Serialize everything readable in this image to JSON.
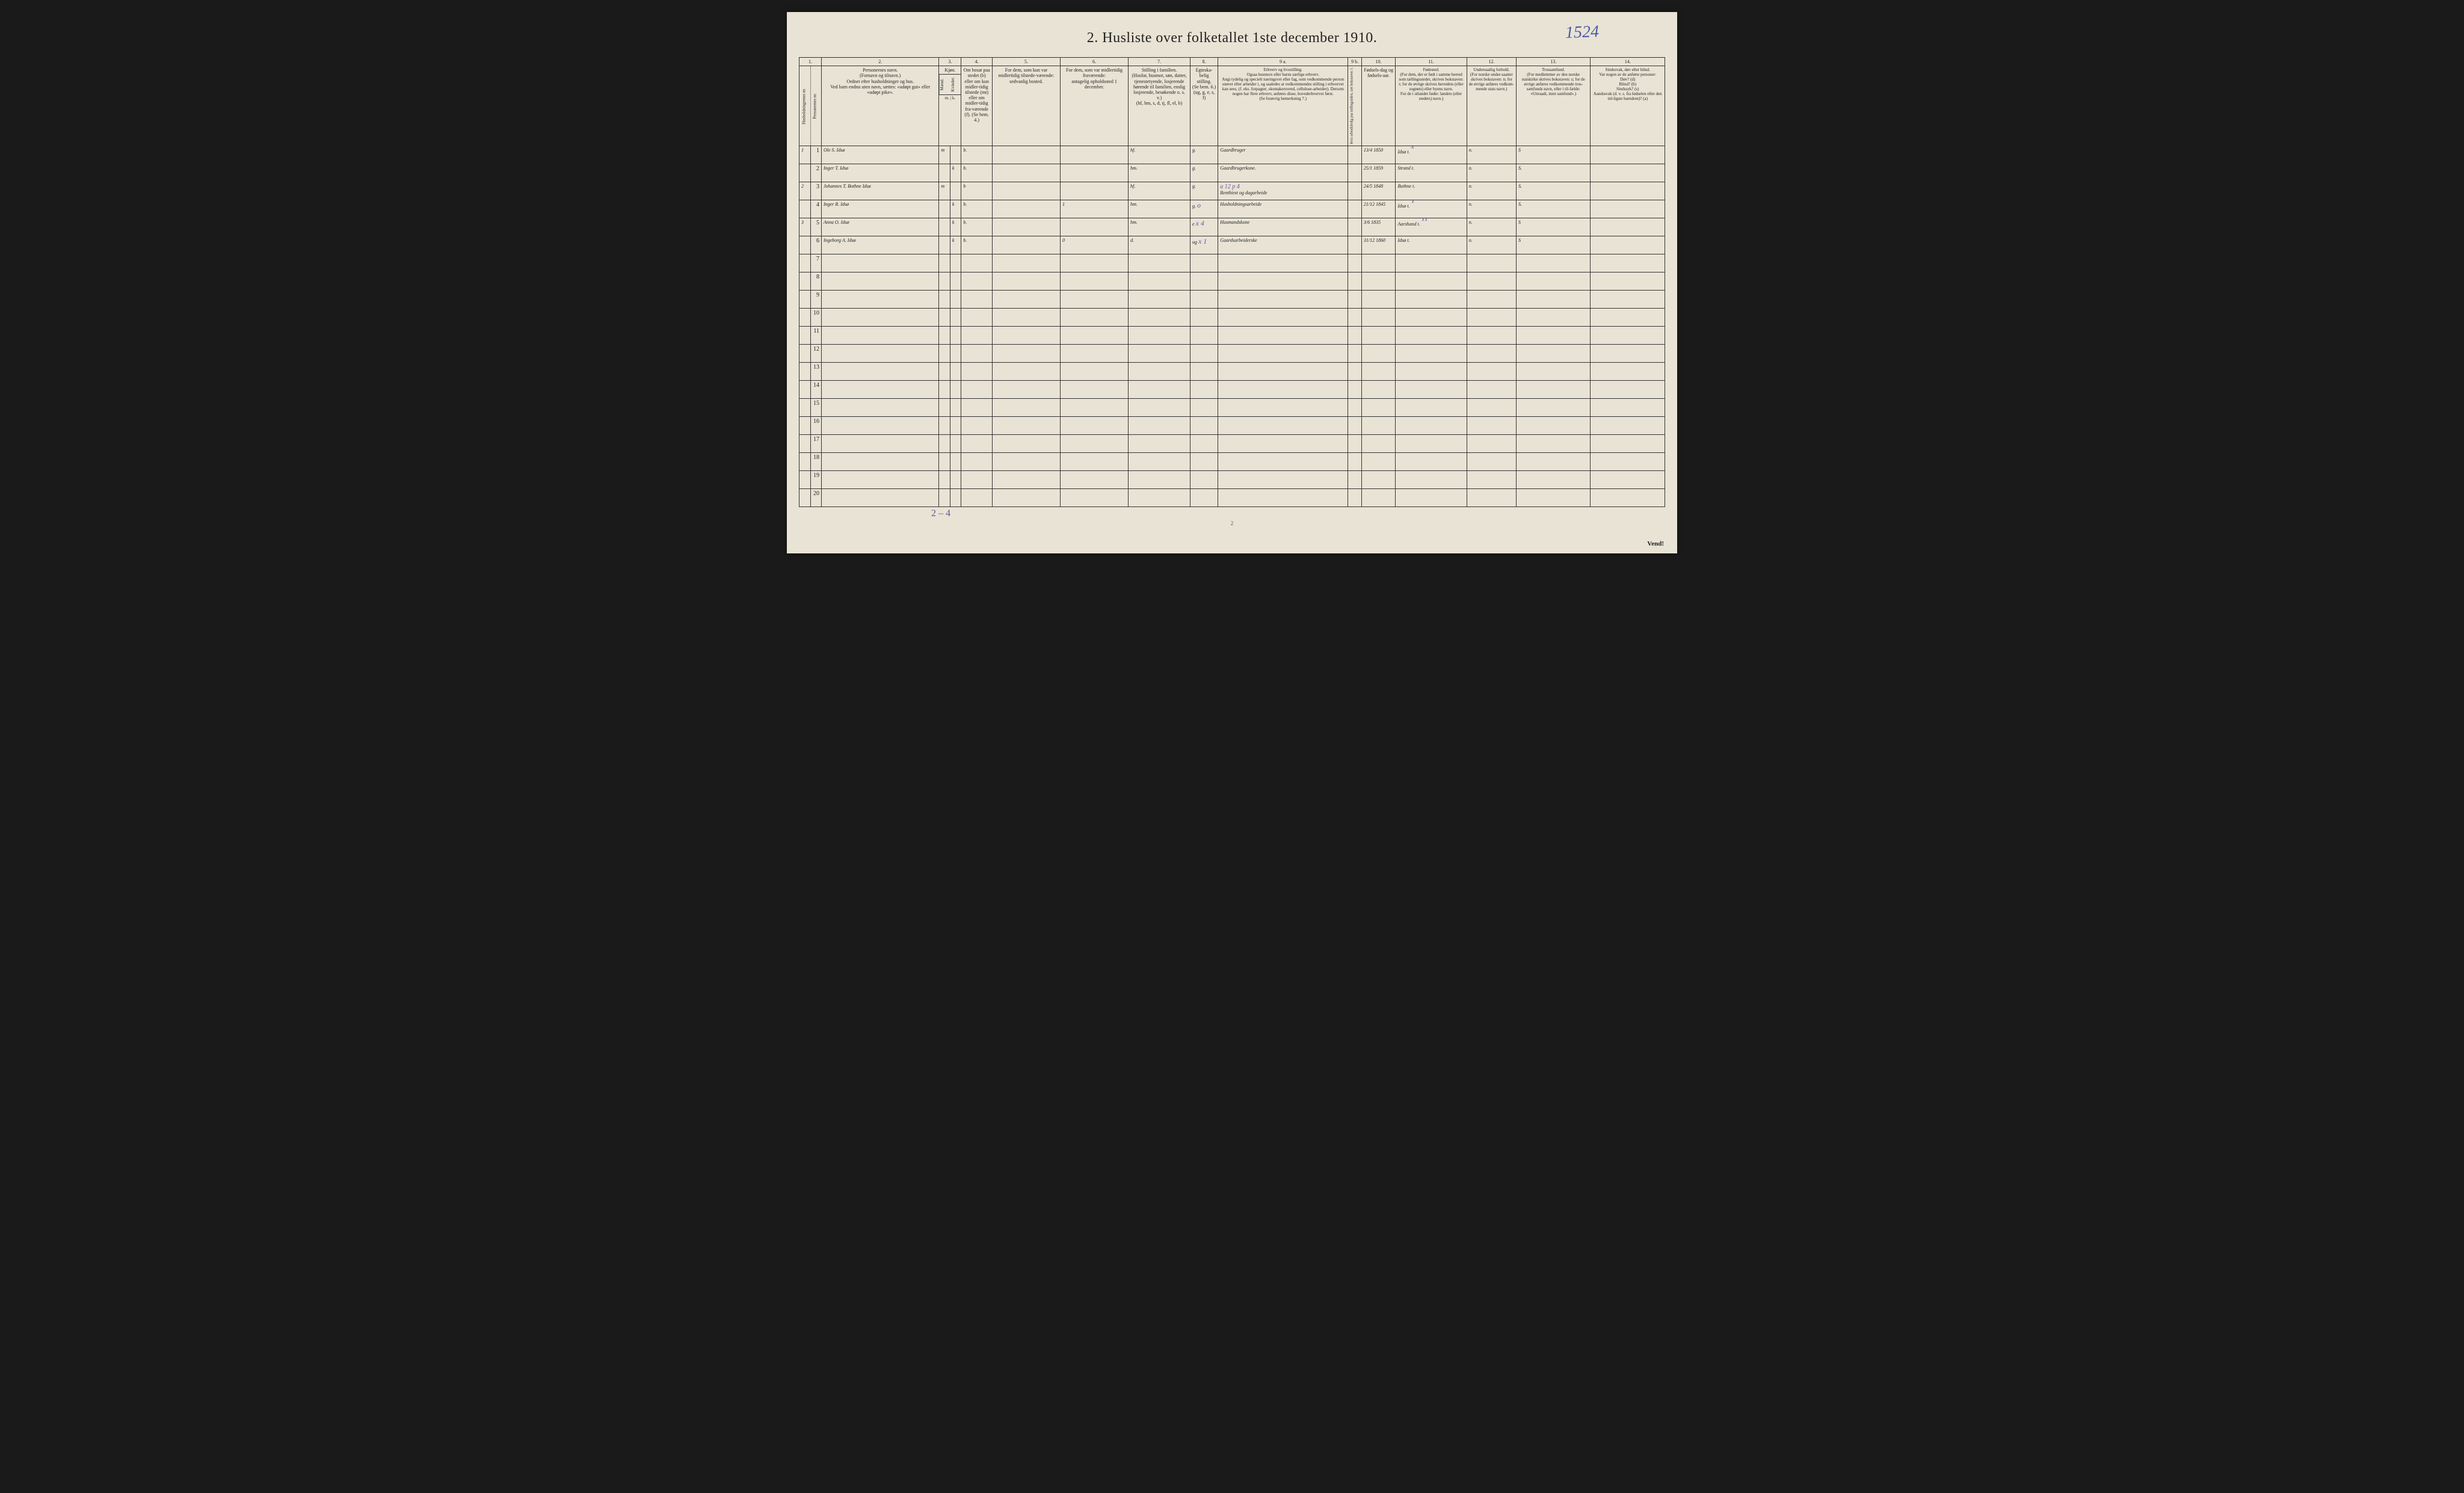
{
  "handwritten_topright": "1524",
  "title": "2.  Husliste over folketallet 1ste december 1910.",
  "column_numbers": [
    "1.",
    "2.",
    "3.",
    "4.",
    "5.",
    "6.",
    "7.",
    "8.",
    "9 a.",
    "9 b.",
    "10.",
    "11.",
    "12.",
    "13.",
    "14."
  ],
  "headers": {
    "c1a": "Husholdningernes nr.",
    "c1b": "Personernes nr.",
    "c2": "Personernes navn.\n(Fornavn og tilnavn.)\nOrdnet efter husholdninger og hus.\nVed barn endnu uten navn, sættes: «udøpt gut» eller «udøpt pike».",
    "c3_top": "Kjøn.",
    "c3a": "Mænd.",
    "c3b": "Kvinder.",
    "c3_foot": "m. | k.",
    "c4": "Om bosat paa stedet (b) eller om kun midler-tidig tilstede (mt) eller om midler-tidig fra-værende (f). (Se bem. 4.)",
    "c5": "For dem, som kun var midlertidig tilstede-værende:\nsedvanlig bosted.",
    "c6": "For dem, som var midlertidig fraværende:\nantagelig opholdssted 1 december.",
    "c7": "Stilling i familien.\n(Husfar, husmor, søn, datter, tjenestetyende, losjerende hørende til familien, enslig losjerende, besøkende o. s. v.)\n(hf, hm, s, d, tj, fl, el, b)",
    "c8": "Egteska-belig stilling.\n(Se bem. 6.)\n(ug, g, e, s, f)",
    "c9a": "Erhverv og livsstilling.\nOgsaa husmors eller barns særlige erhverv.\nAngi tydelig og specielt næringsvei eller fag, som vedkommende person utøver eller arbeider i, og saaledes at vedkommendes stilling i erhvervet kan sees, (f. eks. forpagter, skomakersvend, cellulose-arbeider). Dersom nogen har flere erhverv, anføres disse, hovederhvervet først.\n(Se forøvrig bemerkning 7.)",
    "c9b": "Hvis arbeidsledig paa tællingstiden, sæt bokstaven: l.",
    "c10": "Fødsels-dag og fødsels-aar.",
    "c11": "Fødested.\n(For dem, der er født i samme herred som tællingsstedet, skrives bokstaven: t; for de øvrige skrives herredets (eller sognets) eller byens navn.\nFor de i utlandet fødte: landets (eller stedets) navn.)",
    "c12": "Undersaatlig forhold.\n(For norske under-saatter skrives bokstaven: n; for de øvrige anføres vedkom-mende stats navn.)",
    "c13": "Trossamfund.\n(For medlemmer av den norske statskirke skrives bokstaven: s; for de øvrige anføres vedkommende tros-samfunds navn, eller i til-fælde: «Uttraadt, intet samfund».)",
    "c14": "Sindssvak, døv eller blind.\nVar nogen av de anførte personer:\nDøv?      (d)\nBlind?     (b)\nSindssyk? (s)\nAandssvak (d. v. s. fra fødselen eller den tid-ligste barndom)? (a)"
  },
  "rows": [
    {
      "hh": "1",
      "pn": "1",
      "name": "Ole S. Idsø",
      "sex_m": "m",
      "sex_k": "",
      "c4": "b.",
      "c5": "",
      "c6": "",
      "c7": "hf.",
      "c8": "g.",
      "c9a": "Gaardbruger",
      "c9b": "",
      "c10": "13/4 1850",
      "c11": "Idsø  t.",
      "c11x": "x",
      "c12": "n.",
      "c13": "S",
      "c14": ""
    },
    {
      "hh": "",
      "pn": "2",
      "name": "Inger T. Idsø",
      "sex_m": "",
      "sex_k": "k",
      "c4": "b.",
      "c5": "",
      "c6": "",
      "c7": "hm.",
      "c8": "g.",
      "c9a": "Gaardbrugerkone.",
      "c9b": "",
      "c10": "25/1 1859",
      "c11": "Strand  t.",
      "c11x": "",
      "c12": "n.",
      "c13": "S.",
      "c14": ""
    },
    {
      "hh": "2",
      "pn": "3",
      "name": "Johannes T. Bothne Idsø",
      "sex_m": "m",
      "sex_k": "",
      "c4": "b",
      "c5": "",
      "c6": "",
      "c7": "hf.",
      "c8": "g.",
      "c9a": "Renthiest og dagarbeide",
      "c9a_annot": "a 12 p 4",
      "c9b": "",
      "c10": "24/5 1848",
      "c11": "Bothne  t.",
      "c11x": "",
      "c12": "n.",
      "c13": "S.",
      "c14": ""
    },
    {
      "hh": "",
      "pn": "4",
      "name": "Inger R. Idsø",
      "sex_m": "",
      "sex_k": "k",
      "c4": "b.",
      "c5": "",
      "c6": "1",
      "c7": "hm.",
      "c8": "g.",
      "c8_annot": "o",
      "c9a": "Husholdningsarbeide",
      "c9b": "",
      "c10": "21/12 1845",
      "c11": "Idsø  t.",
      "c11x": "T",
      "c12": "n.",
      "c13": "S.",
      "c14": ""
    },
    {
      "hh": "3",
      "pn": "5",
      "name": "Anna O. Idsø",
      "sex_m": "",
      "sex_k": "k",
      "c4": "b.",
      "c5": "",
      "c6": "",
      "c7": "hm.",
      "c8": "e",
      "c8_annot": "x 4",
      "c9a": "Husmandskone",
      "c9b": "",
      "c10": "3/6 1835",
      "c11": "Aarshand  t.",
      "c11x": "11",
      "c12": "n.",
      "c13": "S",
      "c14": ""
    },
    {
      "hh": "",
      "pn": "6",
      "name": "Ingeborg A. Idsø",
      "sex_m": "",
      "sex_k": "k",
      "c4": "b.",
      "c5": "",
      "c6": "0",
      "c7": "d.",
      "c8": "ug",
      "c8_annot": "x 1",
      "c9a": "Gaardsarbeiderske",
      "c9b": "",
      "c10": "31/12 1860",
      "c11": "Idsø  t.",
      "c11x": "",
      "c12": "n.",
      "c13": "S",
      "c14": ""
    }
  ],
  "empty_rows": [
    "7",
    "8",
    "9",
    "10",
    "11",
    "12",
    "13",
    "14",
    "15",
    "16",
    "17",
    "18",
    "19",
    "20"
  ],
  "footer_annotation": "2 – 4",
  "page_foot": "2",
  "vend": "Vend!",
  "colwidths": {
    "c1a": 18,
    "c1b": 18,
    "c2": 190,
    "c3a": 18,
    "c3b": 18,
    "c4": 50,
    "c5": 110,
    "c6": 110,
    "c7": 100,
    "c8": 45,
    "c9a": 210,
    "c9b": 22,
    "c10": 55,
    "c11": 115,
    "c12": 80,
    "c13": 120,
    "c14": 120
  },
  "colors": {
    "paper": "#e8e3d4",
    "ink": "#222222",
    "pen": "#3a3a58",
    "blue": "#4a5ba8",
    "border": "#333333"
  }
}
